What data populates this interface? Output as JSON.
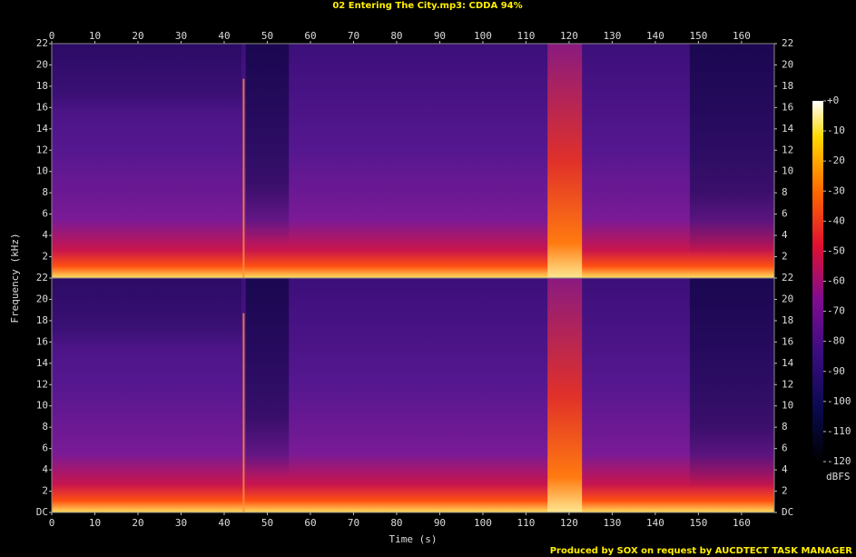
{
  "chart_data": {
    "type": "heatmap",
    "title": "02 Entering The City.mp3: CDDA 94%",
    "xlabel": "Time (s)",
    "ylabel": "Frequency (kHz)",
    "xlim": [
      0,
      167.6
    ],
    "xticks": [
      0,
      10,
      20,
      30,
      40,
      50,
      60,
      70,
      80,
      90,
      100,
      110,
      120,
      130,
      140,
      150,
      160
    ],
    "channels": [
      {
        "ylim": [
          0,
          22
        ],
        "yticks": [
          2,
          4,
          6,
          8,
          10,
          12,
          14,
          16,
          18,
          20,
          22
        ]
      },
      {
        "ylim": [
          0,
          22
        ],
        "yticks": [
          {
            "value": 0,
            "label": "DC"
          },
          2,
          4,
          6,
          8,
          10,
          12,
          14,
          16,
          18,
          20,
          22
        ]
      }
    ],
    "colorbar": {
      "label": "dBFS",
      "lim": [
        -120,
        0
      ],
      "ticks": [
        {
          "value": 0,
          "label": "+0"
        },
        -10,
        -20,
        -30,
        -40,
        -50,
        -60,
        -70,
        -80,
        -90,
        -100,
        -110,
        -120
      ]
    },
    "footer": "Produced by SOX on request by AUCDTECT TASK MANAGER"
  }
}
